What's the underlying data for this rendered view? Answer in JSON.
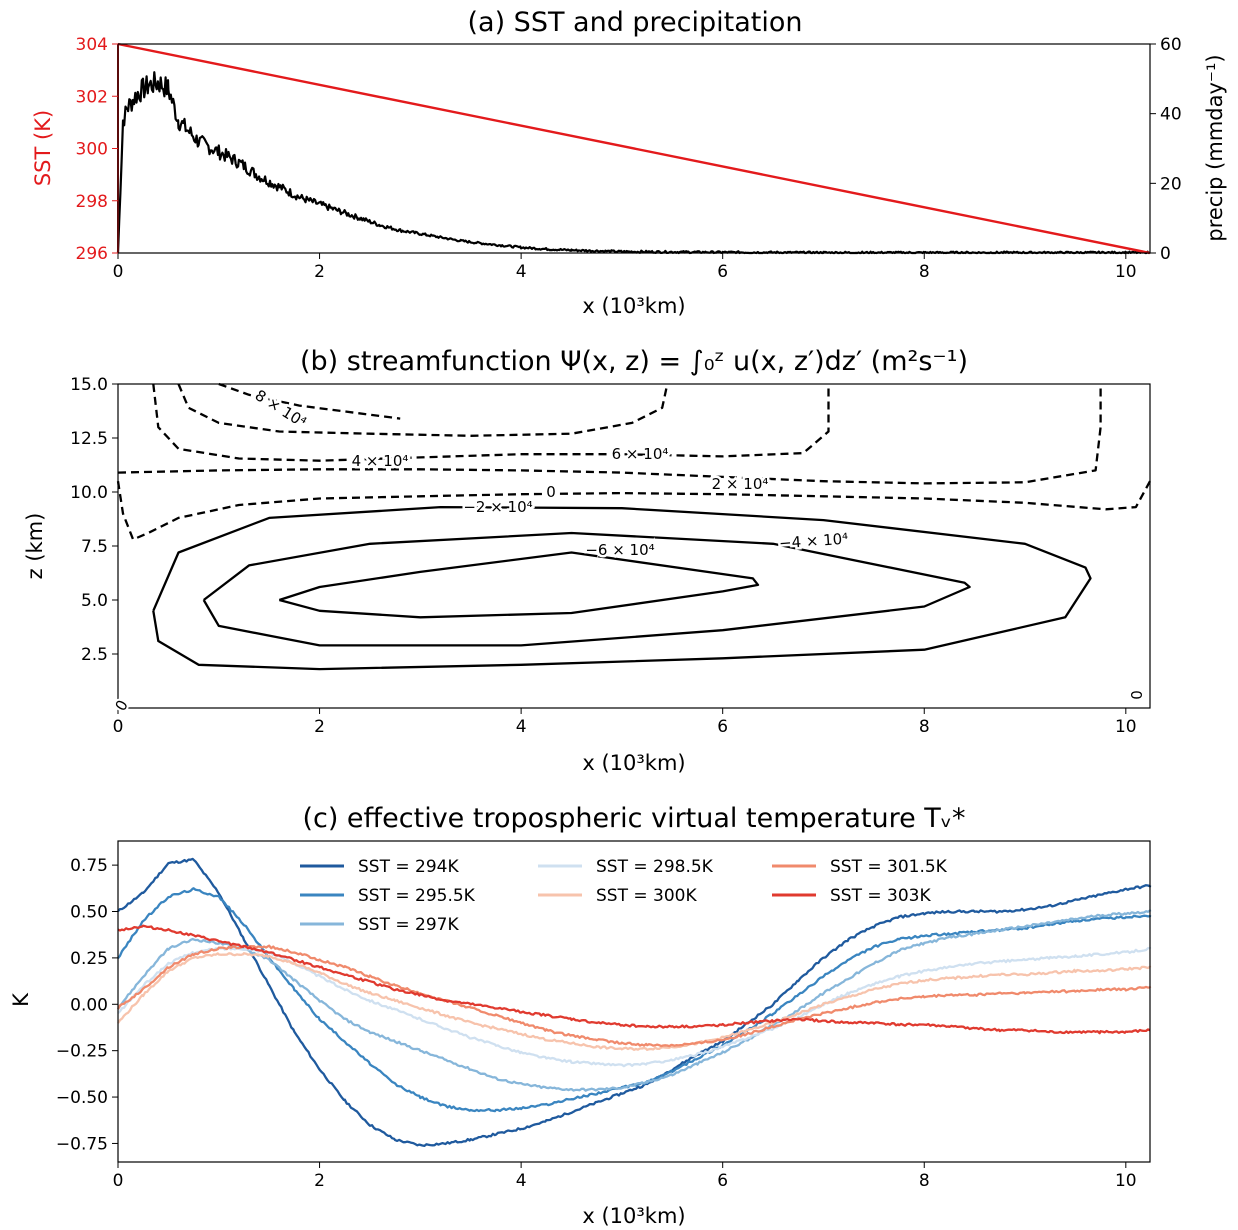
{
  "chart_data": [
    {
      "type": "line",
      "title": "(a) SST and precipitation",
      "xlabel": "x (10³km)",
      "ylabel_left": "SST (K)",
      "ylabel_right": "precip (mmday⁻¹)",
      "xlim": [
        0,
        10.24
      ],
      "ylim_left": [
        296,
        304
      ],
      "ylim_right": [
        0,
        60
      ],
      "xticks": [
        "0",
        "2",
        "4",
        "6",
        "8",
        "10"
      ],
      "yticks_left": [
        "296",
        "298",
        "300",
        "302",
        "304"
      ],
      "yticks_right": [
        "0",
        "20",
        "40",
        "60"
      ],
      "grid": false,
      "series": [
        {
          "axis": "left",
          "color": "#e31a1c",
          "x": [
            0,
            10.24
          ],
          "y": [
            304,
            296
          ]
        },
        {
          "axis": "right",
          "color": "#000000",
          "x": [
            0,
            0.05,
            0.1,
            0.2,
            0.3,
            0.4,
            0.5,
            0.6,
            0.8,
            1.0,
            1.2,
            1.4,
            1.6,
            1.8,
            2.0,
            2.2,
            2.4,
            2.6,
            2.8,
            3.0,
            3.2,
            3.4,
            3.6,
            3.8,
            4.0,
            4.2,
            4.5,
            5.0,
            6.0,
            7.0,
            8.0,
            9.0,
            10.0,
            10.24
          ],
          "y": [
            0,
            38,
            42,
            46,
            48,
            49,
            47,
            38,
            32,
            29,
            26,
            22,
            19,
            16,
            14,
            12,
            10,
            8,
            6.5,
            5.5,
            4.5,
            3.5,
            2.8,
            2.2,
            1.6,
            1.2,
            0.8,
            0.4,
            0.2,
            0.1,
            0.1,
            0.1,
            0.1,
            0.1
          ]
        }
      ]
    },
    {
      "type": "contour",
      "title": "(b) streamfunction Ψ(x, z) = ∫₀ᶻ u(x, z′)dz′ (m²s⁻¹)",
      "xlabel": "x (10³km)",
      "ylabel": "z (km)",
      "xlim": [
        0,
        10.24
      ],
      "ylim": [
        0,
        15
      ],
      "xticks": [
        "0",
        "2",
        "4",
        "6",
        "8",
        "10"
      ],
      "yticks": [
        "2.5",
        "5.0",
        "7.5",
        "10.0",
        "12.5",
        "15.0"
      ],
      "grid": false,
      "contour_labels": [
        "8 × 10⁴",
        "6 × 10⁴",
        "4 × 10⁴",
        "2 × 10⁴",
        "0",
        "−2 × 10⁴",
        "−4 × 10⁴",
        "−6 × 10⁴",
        "0",
        "0"
      ],
      "levels": [
        {
          "value": -60000,
          "style": "solid",
          "x": [
            1.6,
            2.0,
            3.0,
            4.5,
            6.3,
            6.35,
            6.0,
            4.5,
            3.0,
            2.0,
            1.6
          ],
          "z": [
            5.0,
            5.6,
            6.3,
            7.2,
            6.0,
            5.7,
            5.4,
            4.4,
            4.2,
            4.5,
            5.0
          ]
        },
        {
          "value": -40000,
          "style": "solid",
          "x": [
            0.85,
            1.3,
            2.5,
            4.5,
            6.5,
            8.4,
            8.45,
            8.0,
            6.0,
            4.0,
            2.0,
            1.0,
            0.85
          ],
          "z": [
            5.0,
            6.6,
            7.6,
            8.1,
            7.6,
            5.8,
            5.6,
            4.7,
            3.6,
            2.9,
            2.9,
            3.8,
            5.0
          ]
        },
        {
          "value": -20000,
          "style": "solid",
          "x": [
            0.35,
            0.6,
            1.5,
            3.2,
            5.0,
            7.0,
            9.0,
            9.6,
            9.65,
            9.4,
            8.0,
            6.0,
            4.0,
            2.0,
            0.8,
            0.4,
            0.35
          ],
          "z": [
            4.5,
            7.2,
            8.8,
            9.3,
            9.25,
            8.7,
            7.6,
            6.5,
            6.0,
            4.2,
            2.7,
            2.3,
            2.0,
            1.8,
            2.0,
            3.1,
            4.5
          ]
        },
        {
          "value": 0,
          "style": "dashed",
          "x": [
            0.0,
            0.05,
            0.15,
            0.3,
            0.6,
            1.2,
            2.0,
            3.0,
            4.0,
            5.0,
            6.0,
            7.0,
            8.0,
            9.0,
            9.8,
            10.1,
            10.24
          ],
          "z": [
            10.5,
            9.0,
            7.8,
            8.1,
            8.8,
            9.4,
            9.7,
            9.8,
            9.9,
            9.95,
            9.9,
            9.8,
            9.7,
            9.5,
            9.2,
            9.3,
            10.5
          ]
        },
        {
          "value": 20000,
          "style": "dashed",
          "x": [
            0.0,
            1.0,
            2.0,
            3.0,
            4.0,
            5.0,
            6.0,
            7.0,
            8.0,
            9.0,
            9.7,
            9.75,
            9.75
          ],
          "z": [
            10.9,
            11.0,
            11.05,
            11.05,
            11.0,
            10.9,
            10.7,
            10.5,
            10.4,
            10.45,
            11.0,
            13.0,
            15.0
          ]
        },
        {
          "value": 40000,
          "style": "dashed",
          "x": [
            0.35,
            0.4,
            0.6,
            1.2,
            2.0,
            3.0,
            4.0,
            5.0,
            6.0,
            6.8,
            7.05,
            7.05
          ],
          "z": [
            15.0,
            13.0,
            12.0,
            11.55,
            11.45,
            11.6,
            11.75,
            11.75,
            11.65,
            11.8,
            12.8,
            15.0
          ]
        },
        {
          "value": 60000,
          "style": "dashed",
          "x": [
            0.6,
            0.7,
            1.0,
            1.6,
            2.5,
            3.5,
            4.5,
            5.1,
            5.4,
            5.45
          ],
          "z": [
            15.0,
            13.9,
            13.2,
            12.8,
            12.7,
            12.6,
            12.7,
            13.2,
            13.9,
            15.0
          ]
        },
        {
          "value": 80000,
          "style": "dashed",
          "x": [
            1.0,
            1.3,
            1.8,
            2.8
          ],
          "z": [
            15.0,
            14.5,
            14.0,
            13.4
          ]
        }
      ]
    },
    {
      "type": "line",
      "title": "(c) effective tropospheric virtual temperature Tᵥ*",
      "xlabel": "x (10³km)",
      "ylabel": "K",
      "xlim": [
        0,
        10.24
      ],
      "ylim": [
        -0.85,
        0.88
      ],
      "xticks": [
        "0",
        "2",
        "4",
        "6",
        "8",
        "10"
      ],
      "yticks": [
        "−0.75",
        "−0.50",
        "−0.25",
        "0.00",
        "0.25",
        "0.50",
        "0.75"
      ],
      "grid": false,
      "legend": "top-center",
      "x": [
        0,
        0.25,
        0.5,
        0.75,
        1,
        1.25,
        1.5,
        1.75,
        2,
        2.25,
        2.5,
        2.75,
        3,
        3.25,
        3.5,
        3.75,
        4,
        4.25,
        4.5,
        4.75,
        5,
        5.25,
        5.5,
        5.75,
        6,
        6.25,
        6.5,
        6.75,
        7,
        7.25,
        7.5,
        7.75,
        8,
        8.25,
        8.5,
        8.75,
        9,
        9.25,
        9.5,
        9.75,
        10,
        10.24
      ],
      "series": [
        {
          "name": "SST = 294K",
          "color": "#1f5a9e",
          "y": [
            0.5,
            0.6,
            0.76,
            0.78,
            0.6,
            0.35,
            0.1,
            -0.15,
            -0.35,
            -0.52,
            -0.65,
            -0.73,
            -0.76,
            -0.75,
            -0.73,
            -0.7,
            -0.67,
            -0.63,
            -0.58,
            -0.53,
            -0.48,
            -0.43,
            -0.35,
            -0.27,
            -0.2,
            -0.1,
            0.0,
            0.13,
            0.25,
            0.35,
            0.42,
            0.47,
            0.49,
            0.5,
            0.5,
            0.5,
            0.51,
            0.53,
            0.56,
            0.59,
            0.62,
            0.64
          ]
        },
        {
          "name": "SST = 295.5K",
          "color": "#3a85c0",
          "y": [
            0.25,
            0.45,
            0.58,
            0.62,
            0.58,
            0.43,
            0.25,
            0.08,
            -0.08,
            -0.2,
            -0.32,
            -0.43,
            -0.5,
            -0.55,
            -0.57,
            -0.57,
            -0.56,
            -0.54,
            -0.51,
            -0.48,
            -0.45,
            -0.42,
            -0.36,
            -0.29,
            -0.22,
            -0.14,
            -0.05,
            0.05,
            0.15,
            0.24,
            0.31,
            0.35,
            0.37,
            0.38,
            0.39,
            0.4,
            0.41,
            0.43,
            0.45,
            0.46,
            0.47,
            0.48
          ]
        },
        {
          "name": "SST = 297K",
          "color": "#86b6da",
          "y": [
            -0.02,
            0.15,
            0.3,
            0.35,
            0.33,
            0.3,
            0.24,
            0.13,
            0.02,
            -0.08,
            -0.15,
            -0.2,
            -0.25,
            -0.3,
            -0.35,
            -0.4,
            -0.43,
            -0.45,
            -0.46,
            -0.46,
            -0.45,
            -0.42,
            -0.38,
            -0.32,
            -0.26,
            -0.19,
            -0.11,
            -0.03,
            0.06,
            0.14,
            0.22,
            0.29,
            0.33,
            0.36,
            0.38,
            0.4,
            0.42,
            0.44,
            0.46,
            0.48,
            0.49,
            0.5
          ]
        },
        {
          "name": "SST = 298.5K",
          "color": "#cfe0f0",
          "y": [
            -0.05,
            0.1,
            0.22,
            0.28,
            0.3,
            0.3,
            0.28,
            0.22,
            0.15,
            0.08,
            0.02,
            -0.03,
            -0.08,
            -0.13,
            -0.18,
            -0.22,
            -0.26,
            -0.29,
            -0.31,
            -0.32,
            -0.33,
            -0.32,
            -0.3,
            -0.27,
            -0.23,
            -0.18,
            -0.13,
            -0.07,
            0.0,
            0.06,
            0.11,
            0.15,
            0.18,
            0.2,
            0.22,
            0.23,
            0.24,
            0.25,
            0.26,
            0.27,
            0.28,
            0.3
          ]
        },
        {
          "name": "SST = 300K",
          "color": "#f7c3ac",
          "y": [
            -0.1,
            0.05,
            0.18,
            0.25,
            0.27,
            0.27,
            0.26,
            0.22,
            0.17,
            0.11,
            0.06,
            0.02,
            -0.02,
            -0.06,
            -0.1,
            -0.13,
            -0.16,
            -0.19,
            -0.21,
            -0.23,
            -0.24,
            -0.24,
            -0.23,
            -0.21,
            -0.18,
            -0.14,
            -0.1,
            -0.05,
            0.0,
            0.04,
            0.08,
            0.11,
            0.13,
            0.14,
            0.15,
            0.16,
            0.16,
            0.17,
            0.18,
            0.18,
            0.19,
            0.2
          ]
        },
        {
          "name": "SST = 301.5K",
          "color": "#f08a6c",
          "y": [
            -0.02,
            0.08,
            0.2,
            0.27,
            0.3,
            0.31,
            0.31,
            0.28,
            0.24,
            0.2,
            0.15,
            0.1,
            0.06,
            0.02,
            -0.02,
            -0.06,
            -0.1,
            -0.14,
            -0.17,
            -0.19,
            -0.21,
            -0.22,
            -0.22,
            -0.21,
            -0.19,
            -0.16,
            -0.12,
            -0.08,
            -0.05,
            -0.02,
            0.01,
            0.03,
            0.04,
            0.05,
            0.05,
            0.06,
            0.06,
            0.07,
            0.07,
            0.08,
            0.08,
            0.09
          ]
        },
        {
          "name": "SST = 303K",
          "color": "#e03a2f",
          "y": [
            0.4,
            0.42,
            0.4,
            0.37,
            0.34,
            0.31,
            0.28,
            0.24,
            0.2,
            0.16,
            0.12,
            0.08,
            0.05,
            0.02,
            0.0,
            -0.02,
            -0.04,
            -0.06,
            -0.08,
            -0.1,
            -0.11,
            -0.12,
            -0.12,
            -0.12,
            -0.11,
            -0.1,
            -0.09,
            -0.08,
            -0.09,
            -0.1,
            -0.1,
            -0.11,
            -0.11,
            -0.12,
            -0.13,
            -0.14,
            -0.14,
            -0.15,
            -0.15,
            -0.15,
            -0.15,
            -0.14
          ]
        }
      ]
    }
  ]
}
